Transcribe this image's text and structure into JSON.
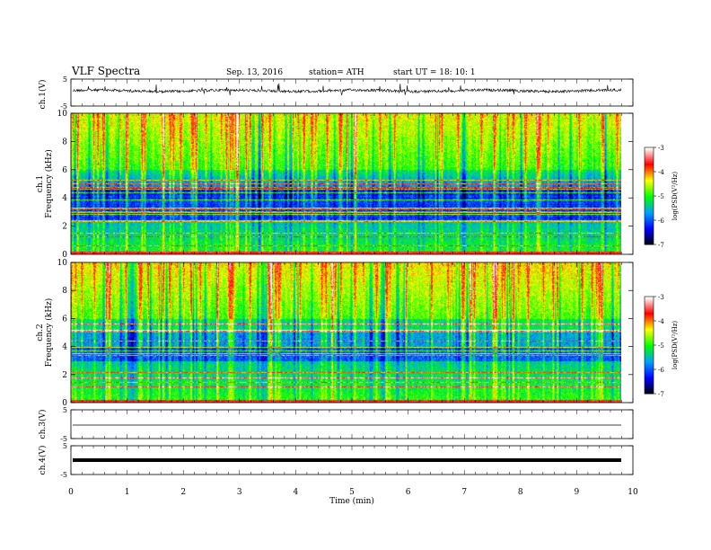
{
  "header": {
    "title": "VLF  Spectra",
    "date": "Sep. 13, 2016",
    "station": "station= ATH",
    "start": "start  UT =    18: 10: 1"
  },
  "chart_data": [
    {
      "type": "line",
      "name": "ch1-waveform",
      "ylabel": "ch.1(V)",
      "ylim": [
        -5,
        5
      ],
      "yticks": [
        "5",
        "-5"
      ],
      "xlim": [
        0,
        10
      ]
    },
    {
      "type": "heatmap",
      "name": "ch1-spectrogram",
      "ylabel": "ch.1\nFrequency (kHz)",
      "ylim": [
        0,
        10
      ],
      "yticks": [
        "0",
        "2",
        "4",
        "6",
        "8",
        "10"
      ],
      "xlim": [
        0,
        9.8
      ],
      "colorbar": {
        "label": "log(PSD(V²/Hz)",
        "range": [
          -7,
          -3
        ],
        "ticks": [
          "-3",
          "-4",
          "-5",
          "-6",
          "-7"
        ]
      }
    },
    {
      "type": "heatmap",
      "name": "ch2-spectrogram",
      "ylabel": "ch.2\nFrequency (kHz)",
      "ylim": [
        0,
        10
      ],
      "yticks": [
        "0",
        "2",
        "4",
        "6",
        "8",
        "10"
      ],
      "xlim": [
        0,
        9.8
      ],
      "colorbar": {
        "label": "log(PSD(V²/Hz)",
        "range": [
          -7,
          -3
        ],
        "ticks": [
          "-3",
          "-4",
          "-5",
          "-6",
          "-7"
        ]
      }
    },
    {
      "type": "line",
      "name": "ch3-waveform",
      "ylabel": "ch.3(V)",
      "ylim": [
        -5,
        5
      ],
      "yticks": [
        "5",
        "-5"
      ],
      "level": 0
    },
    {
      "type": "line",
      "name": "ch4-waveform",
      "ylabel": "ch.4(V)",
      "ylim": [
        -5,
        5
      ],
      "yticks": [
        "5",
        "-5"
      ],
      "level": 0
    }
  ],
  "xaxis": {
    "label": "Time  (min)",
    "ticks": [
      "0",
      "1",
      "2",
      "3",
      "4",
      "5",
      "6",
      "7",
      "8",
      "9",
      "10"
    ],
    "range": [
      0,
      10
    ]
  },
  "colors": {
    "scale": [
      "#000000",
      "#0000ff",
      "#00a0ff",
      "#00ff00",
      "#ffff00",
      "#ff0000",
      "#ffffff"
    ]
  }
}
